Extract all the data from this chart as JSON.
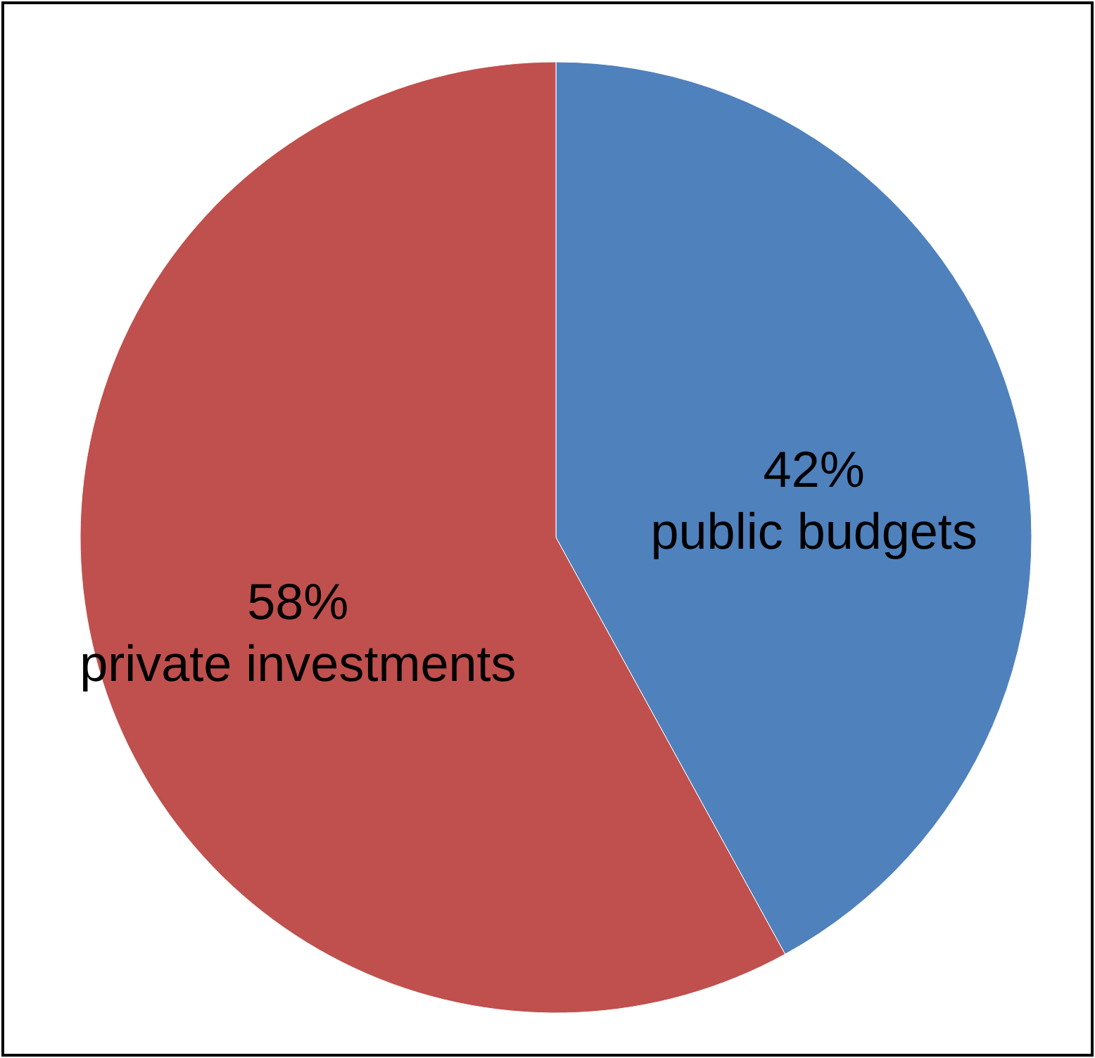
{
  "chart_data": {
    "type": "pie",
    "categories": [
      "public budgets",
      "private investments"
    ],
    "values": [
      42,
      58
    ],
    "colors": [
      "#4f81bd",
      "#c0504d"
    ],
    "value_labels": [
      "42%",
      "58%"
    ]
  }
}
